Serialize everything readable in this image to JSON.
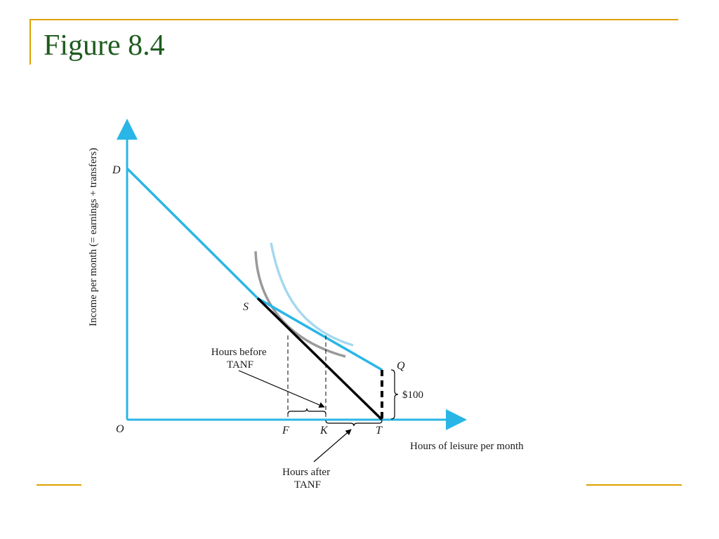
{
  "slide": {
    "title": "Figure 8.4",
    "accent_color": "#e0a000",
    "title_color": "#1e5b1e"
  },
  "diagram": {
    "y_axis_label": "Income per month (= earnings + transfers)",
    "x_axis_label": "Hours of leisure per month",
    "points": {
      "origin": "O",
      "d": "D",
      "s": "S",
      "q": "Q",
      "f": "F",
      "k": "K",
      "t": "T"
    },
    "transfer_amount": "$100",
    "callout_before": [
      "Hours before",
      "TANF"
    ],
    "callout_after": [
      "Hours after",
      "TANF"
    ],
    "colors": {
      "axis": "#29b6e6",
      "budget_line": "#29b6e6",
      "pre_tanf_line": "#000000",
      "indifference_curve_1": "#9a9a9a",
      "indifference_curve_2": "#a6d8ef"
    }
  }
}
